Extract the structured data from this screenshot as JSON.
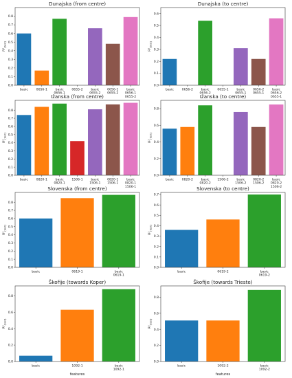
{
  "colors": [
    "#1f77b4",
    "#ff7f0e",
    "#2ca02c",
    "#d62728",
    "#9467bd",
    "#8c564b",
    "#e377c2"
  ],
  "chart_data": [
    {
      "type": "bar",
      "title": "Dunajska (from centre)",
      "ylabel": "R²(test)",
      "xlabel": "",
      "ylim": [
        0,
        0.9
      ],
      "yticks": [
        "0.0",
        "0.1",
        "0.2",
        "0.3",
        "0.4",
        "0.5",
        "0.6",
        "0.7",
        "0.8"
      ],
      "categories": [
        "basic",
        "0656-1",
        "basic\n0656-1",
        "0655-2",
        "basic\n0655-2",
        "0656-1\n0655-2",
        "basic\n0656-1\n0655-2"
      ],
      "values": [
        0.6,
        0.17,
        0.77,
        0.0,
        0.66,
        0.48,
        0.79
      ],
      "color_index": [
        0,
        1,
        2,
        3,
        4,
        5,
        6
      ]
    },
    {
      "type": "bar",
      "title": "Dunajska (to centre)",
      "ylabel": "R²(test)",
      "xlabel": "",
      "ylim": [
        0,
        0.65
      ],
      "yticks": [
        "0.0",
        "0.1",
        "0.2",
        "0.3",
        "0.4",
        "0.5",
        "0.6"
      ],
      "categories": [
        "basic",
        "0656-2",
        "basic\n0656-2",
        "0655-1",
        "basic\n0655-1",
        "0656-2\n0655-1",
        "basic\n0656-2\n0655-1"
      ],
      "values": [
        0.22,
        0.0,
        0.54,
        0.0,
        0.31,
        0.22,
        0.56
      ],
      "color_index": [
        0,
        1,
        2,
        3,
        4,
        5,
        6
      ]
    },
    {
      "type": "bar",
      "title": "Ižanska (from centre)",
      "ylabel": "R²(test)",
      "xlabel": "",
      "ylim": [
        0,
        0.92
      ],
      "yticks": [
        "0.0",
        "0.1",
        "0.2",
        "0.3",
        "0.4",
        "0.5",
        "0.6",
        "0.7",
        "0.8"
      ],
      "categories": [
        "basic",
        "0820-1",
        "basic\n0820-1",
        "1506-1",
        "basic\n1506-1",
        "0820-1\n1506-1",
        "basic\n0820-1\n1506-1"
      ],
      "values": [
        0.74,
        0.84,
        0.88,
        0.42,
        0.81,
        0.87,
        0.89
      ],
      "color_index": [
        0,
        1,
        2,
        3,
        4,
        5,
        6
      ]
    },
    {
      "type": "bar",
      "title": "Ižanska (to centre)",
      "ylabel": "R²(test)",
      "xlabel": "",
      "ylim": [
        0,
        0.9
      ],
      "yticks": [
        "0.0",
        "0.2",
        "0.4",
        "0.6",
        "0.8"
      ],
      "categories": [
        "basic",
        "0820-2",
        "basic\n0820-2",
        "1506-2",
        "basic\n1506-2",
        "0820-2\n1506-2",
        "basic\n0820-2\n1506-2"
      ],
      "values": [
        0.56,
        0.58,
        0.84,
        0.0,
        0.76,
        0.58,
        0.85
      ],
      "color_index": [
        0,
        1,
        2,
        3,
        4,
        5,
        6
      ]
    },
    {
      "type": "bar",
      "title": "Slovenska (from centre)",
      "ylabel": "R²(test)",
      "xlabel": "",
      "ylim": [
        0,
        0.92
      ],
      "yticks": [
        "0.0",
        "0.1",
        "0.2",
        "0.3",
        "0.4",
        "0.5",
        "0.6",
        "0.7",
        "0.8"
      ],
      "categories": [
        "basic",
        "0619-1",
        "basic\n0619-1"
      ],
      "values": [
        0.6,
        0.85,
        0.89
      ],
      "color_index": [
        0,
        1,
        2
      ]
    },
    {
      "type": "bar",
      "title": "Slovenska (to centre)",
      "ylabel": "R²(test)",
      "xlabel": "",
      "ylim": [
        0,
        0.72
      ],
      "yticks": [
        "0.0",
        "0.1",
        "0.2",
        "0.3",
        "0.4",
        "0.5",
        "0.6",
        "0.7"
      ],
      "categories": [
        "basic",
        "0619-2",
        "basic\n0619-2"
      ],
      "values": [
        0.36,
        0.46,
        0.7
      ],
      "color_index": [
        0,
        1,
        2
      ]
    },
    {
      "type": "bar",
      "title": "Škofije (towards Koper)",
      "ylabel": "R²(test)",
      "xlabel": "features",
      "ylim": [
        0,
        0.92
      ],
      "yticks": [
        "0.0",
        "0.2",
        "0.4",
        "0.6",
        "0.8"
      ],
      "categories": [
        "basic",
        "1092-1",
        "basic\n1092-1"
      ],
      "values": [
        0.07,
        0.63,
        0.88
      ],
      "color_index": [
        0,
        1,
        2
      ]
    },
    {
      "type": "bar",
      "title": "Škofije (towards Trieste)",
      "ylabel": "R²(test)",
      "xlabel": "features",
      "ylim": [
        0,
        0.94
      ],
      "yticks": [
        "0.0",
        "0.2",
        "0.4",
        "0.6",
        "0.8"
      ],
      "categories": [
        "basic",
        "1092-2",
        "basic\n1092-2"
      ],
      "values": [
        0.51,
        0.51,
        0.89
      ],
      "color_index": [
        0,
        1,
        2
      ]
    }
  ]
}
